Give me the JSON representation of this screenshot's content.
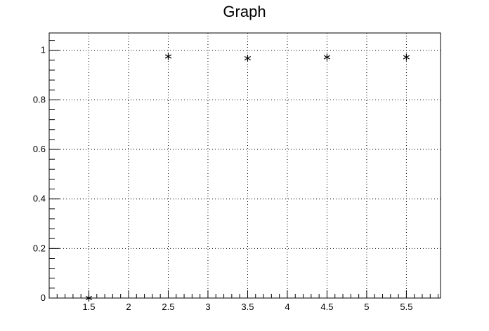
{
  "chart_data": {
    "type": "scatter",
    "title": "Graph",
    "xlabel": "",
    "ylabel": "",
    "xlim": [
      1.0,
      5.93
    ],
    "ylim": [
      0,
      1.07
    ],
    "x_ticks": [
      1.5,
      2,
      2.5,
      3,
      3.5,
      4,
      4.5,
      5,
      5.5
    ],
    "x_tick_labels": [
      "1.5",
      "2",
      "2.5",
      "3",
      "3.5",
      "4",
      "4.5",
      "5",
      "5.5"
    ],
    "y_ticks": [
      0,
      0.2,
      0.4,
      0.6,
      0.8,
      1
    ],
    "y_tick_labels": [
      "0",
      "0.2",
      "0.4",
      "0.6",
      "0.8",
      "1"
    ],
    "grid": true,
    "marker": "asterisk",
    "series": [
      {
        "x": [
          1.5,
          2.5,
          3.5,
          4.5,
          5.5
        ],
        "y": [
          0.0,
          0.975,
          0.968,
          0.972,
          0.972
        ]
      }
    ]
  }
}
